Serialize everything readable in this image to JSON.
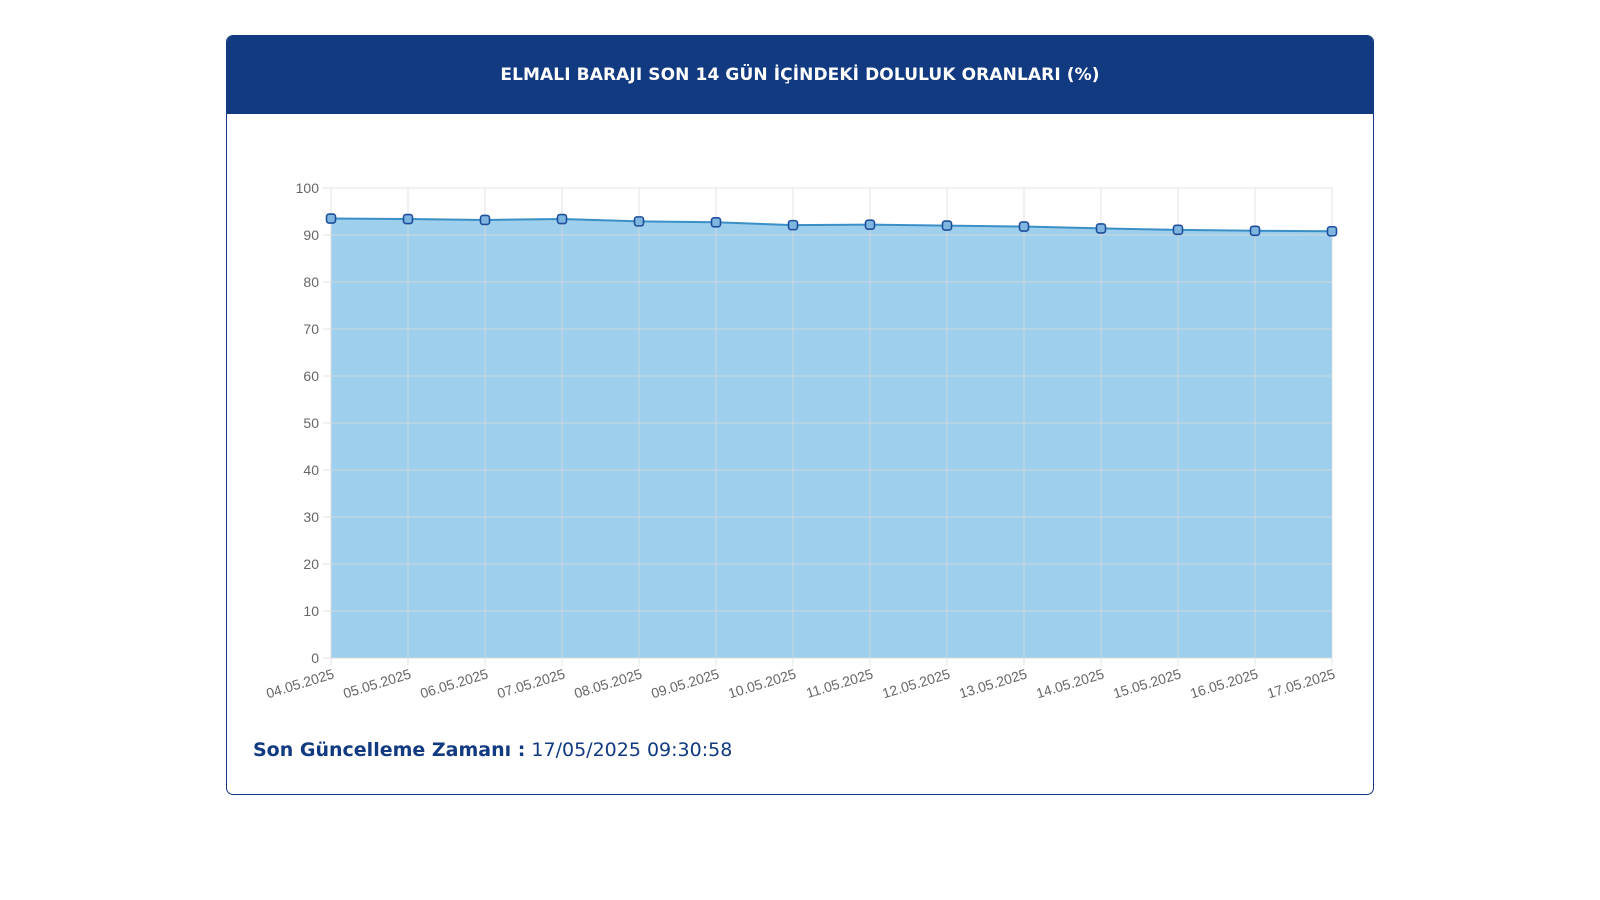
{
  "header": {
    "title": "ELMALI BARAJI SON 14 GÜN İÇİNDEKİ DOLULUK ORANLARI (%)"
  },
  "footer": {
    "label": "Son Güncelleme Zamanı :",
    "value": "17/05/2025 09:30:58"
  },
  "colors": {
    "header_bg": "#123a80",
    "area_fill": "#9ecfec",
    "line": "#3a8fc7",
    "point_fill": "#7fb6e0",
    "point_stroke": "#1f4f9a",
    "grid": "#d9d9d9",
    "tick_text": "#666666"
  },
  "chart_data": {
    "type": "area",
    "title": "ELMALI BARAJI SON 14 GÜN İÇİNDEKİ DOLULUK ORANLARI (%)",
    "xlabel": "",
    "ylabel": "",
    "ylim": [
      0,
      100
    ],
    "yticks": [
      0,
      10,
      20,
      30,
      40,
      50,
      60,
      70,
      80,
      90,
      100
    ],
    "grid": true,
    "legend": "none",
    "categories": [
      "04.05.2025",
      "05.05.2025",
      "06.05.2025",
      "07.05.2025",
      "08.05.2025",
      "09.05.2025",
      "10.05.2025",
      "11.05.2025",
      "12.05.2025",
      "13.05.2025",
      "14.05.2025",
      "15.05.2025",
      "16.05.2025",
      "17.05.2025"
    ],
    "series": [
      {
        "values": [
          93.5,
          93.4,
          93.2,
          93.4,
          92.9,
          92.7,
          92.1,
          92.2,
          92.0,
          91.8,
          91.4,
          91.1,
          90.9,
          90.8
        ]
      }
    ]
  }
}
